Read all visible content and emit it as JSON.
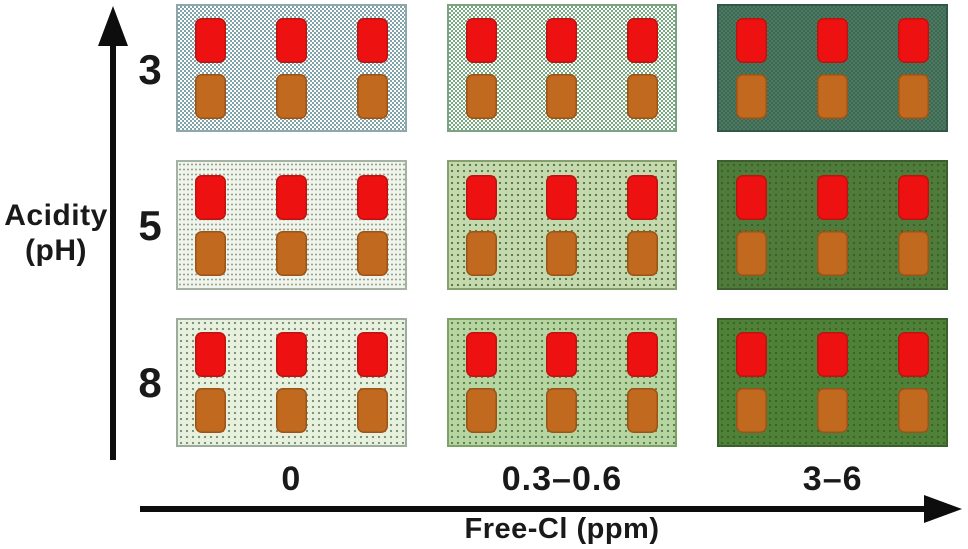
{
  "figure": {
    "y_axis": {
      "title_line1": "Acidity",
      "title_line2": "(pH)",
      "ticks": [
        "3",
        "5",
        "8"
      ]
    },
    "x_axis": {
      "title": "Free-Cl (ppm)",
      "ticks": [
        "0",
        "0.3–0.6",
        "3–6"
      ]
    }
  },
  "colors": {
    "axis_arrow": "#0d0d0d",
    "text": "#191919",
    "red_sample": "#ee1111",
    "orange_sample": "#c1691e"
  },
  "swatch_rows": [
    {
      "name": "red-sample",
      "color": "#ee1111",
      "count": 3
    },
    {
      "name": "orange-sample",
      "color": "#c1691e",
      "count": 3
    }
  ],
  "panels": [
    {
      "ph": "3",
      "free_cl": "0",
      "pattern": "checker",
      "base": "#ffffff",
      "accent": "#7fa3a8",
      "border": "#8fa6ab"
    },
    {
      "ph": "3",
      "free_cl": "0.3–0.6",
      "pattern": "checker",
      "base": "#ffffff",
      "accent": "#79a981",
      "border": "#7aa381"
    },
    {
      "ph": "3",
      "free_cl": "3–6",
      "pattern": "checker",
      "base": "#3e6852",
      "accent": "#4d7a62",
      "border": "#33564a"
    },
    {
      "ph": "5",
      "free_cl": "0",
      "pattern": "dots-fine",
      "base": "#f0f4ea",
      "accent": "#94a494",
      "border": "#a3b2a3"
    },
    {
      "ph": "5",
      "free_cl": "0.3–0.6",
      "pattern": "dots",
      "base": "#c4daae",
      "accent": "#5d7d4b",
      "border": "#85a06c"
    },
    {
      "ph": "5",
      "free_cl": "3–6",
      "pattern": "dots",
      "base": "#4f7c3a",
      "accent": "#3c5f2b",
      "border": "#3d5e2d"
    },
    {
      "ph": "8",
      "free_cl": "0",
      "pattern": "dots",
      "base": "#e7f1de",
      "accent": "#7e957e",
      "border": "#9cab9c"
    },
    {
      "ph": "8",
      "free_cl": "0.3–0.6",
      "pattern": "dots",
      "base": "#b7d5a0",
      "accent": "#618454",
      "border": "#7da267"
    },
    {
      "ph": "8",
      "free_cl": "3–6",
      "pattern": "dots",
      "base": "#4f8238",
      "accent": "#3b6527",
      "border": "#3c6029"
    }
  ],
  "chart_data": {
    "type": "heatmap",
    "xlabel": "Free-Cl (ppm)",
    "ylabel": "Acidity (pH)",
    "x_categories": [
      "0",
      "0.3–0.6",
      "3–6"
    ],
    "y_categories": [
      "3",
      "5",
      "8"
    ],
    "cell_contents": "each panel contains 3 red sample coupons (top row) and 3 orange sample coupons (bottom row)",
    "red_samples_per_cell": 3,
    "orange_samples_per_cell": 3,
    "cell_background_hex": [
      [
        "#adc3c6",
        "#b9d3bd",
        "#3e6852"
      ],
      [
        "#f0f4ea",
        "#c4daae",
        "#4f7c3a"
      ],
      [
        "#e7f1de",
        "#b7d5a0",
        "#4f8238"
      ]
    ],
    "legend_position": "none",
    "grid": false
  }
}
